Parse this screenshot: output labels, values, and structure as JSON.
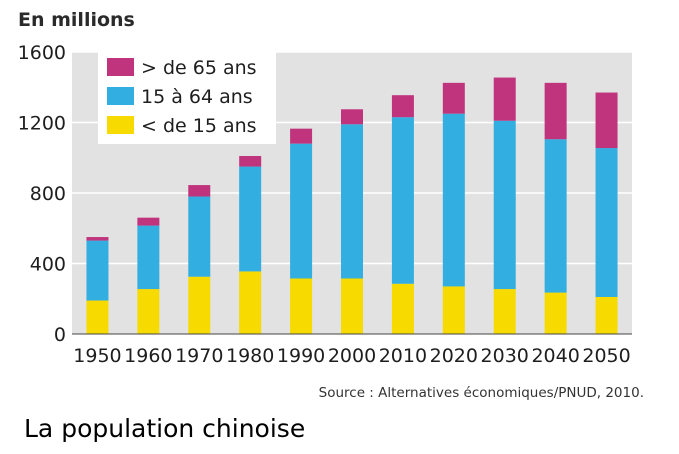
{
  "caption": "La population chinoise",
  "chart_data": {
    "type": "bar",
    "stacked": true,
    "unit_label": "En millions",
    "source": "Source : Alternatives économiques/PNUD, 2010.",
    "categories": [
      "1950",
      "1960",
      "1970",
      "1980",
      "1990",
      "2000",
      "2010",
      "2020",
      "2030",
      "2040",
      "2050"
    ],
    "series": [
      {
        "name": "< de 15 ans",
        "color": "#f6da00",
        "values": [
          190,
          255,
          325,
          355,
          315,
          315,
          285,
          270,
          255,
          235,
          210
        ]
      },
      {
        "name": "15 à 64 ans",
        "color": "#33aee0",
        "values": [
          340,
          360,
          455,
          595,
          765,
          875,
          945,
          980,
          955,
          870,
          845
        ]
      },
      {
        "name": "> de 65 ans",
        "color": "#c0347d",
        "values": [
          20,
          45,
          65,
          60,
          85,
          85,
          125,
          175,
          245,
          320,
          315
        ]
      }
    ],
    "ylim": [
      0,
      1600
    ],
    "yticks": [
      0,
      400,
      800,
      1200,
      1600
    ],
    "grid": true,
    "legend_position": "top-left"
  }
}
